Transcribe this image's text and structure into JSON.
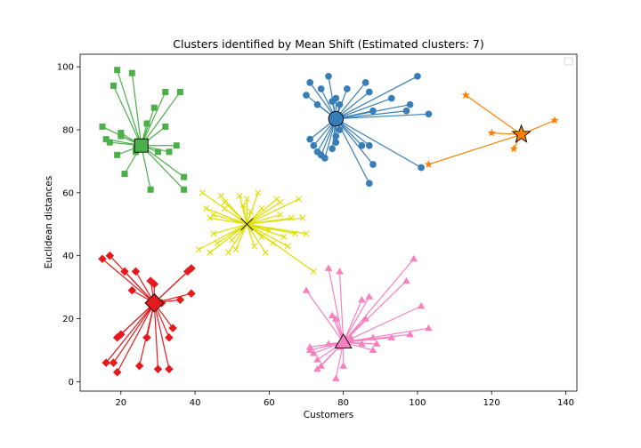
{
  "chart_data": {
    "type": "scatter",
    "title": "Clusters identified by Mean Shift (Estimated clusters: 7)",
    "xlabel": "Customers",
    "ylabel": "Euclidean distances",
    "xlim": [
      9,
      143
    ],
    "ylim": [
      -3,
      104
    ],
    "xticks": [
      20,
      40,
      60,
      80,
      100,
      120,
      140
    ],
    "yticks": [
      0,
      20,
      40,
      60,
      80,
      100
    ],
    "grid": false,
    "legend": "top-right, empty",
    "clusters": [
      {
        "color": "#377eb8",
        "marker": "circle",
        "center": [
          78,
          83.5
        ],
        "points": [
          [
            70,
            91
          ],
          [
            71,
            95
          ],
          [
            73,
            88
          ],
          [
            74,
            93
          ],
          [
            76,
            97
          ],
          [
            77,
            89
          ],
          [
            78,
            90
          ],
          [
            79,
            88
          ],
          [
            81,
            93
          ],
          [
            86,
            95
          ],
          [
            87,
            92
          ],
          [
            88,
            86
          ],
          [
            93,
            90
          ],
          [
            97,
            86
          ],
          [
            98,
            88
          ],
          [
            100,
            97
          ],
          [
            103,
            85
          ],
          [
            71,
            77
          ],
          [
            72,
            75
          ],
          [
            73,
            73
          ],
          [
            74,
            72
          ],
          [
            75,
            71
          ],
          [
            77,
            74
          ],
          [
            78,
            76
          ],
          [
            78,
            78
          ],
          [
            79,
            80
          ],
          [
            85,
            75
          ],
          [
            87,
            75
          ],
          [
            88,
            69
          ],
          [
            87,
            63
          ],
          [
            101,
            68
          ]
        ]
      },
      {
        "color": "#ff7f00",
        "marker": "star",
        "center": [
          128,
          78.5
        ],
        "points": [
          [
            113,
            91
          ],
          [
            120,
            79
          ],
          [
            126,
            74
          ],
          [
            137,
            83
          ],
          [
            103,
            69
          ]
        ]
      },
      {
        "color": "#4daf4a",
        "marker": "square",
        "center": [
          25.5,
          75
        ],
        "points": [
          [
            15,
            81
          ],
          [
            16,
            77
          ],
          [
            17,
            76
          ],
          [
            18,
            94
          ],
          [
            19,
            99
          ],
          [
            19,
            72
          ],
          [
            20,
            79
          ],
          [
            20,
            78
          ],
          [
            21,
            66
          ],
          [
            23,
            98
          ],
          [
            24,
            74
          ],
          [
            24,
            73
          ],
          [
            27,
            82
          ],
          [
            28,
            61
          ],
          [
            29,
            87
          ],
          [
            30,
            73
          ],
          [
            32,
            92
          ],
          [
            32,
            81
          ],
          [
            33,
            73
          ],
          [
            35,
            75
          ],
          [
            36,
            92
          ],
          [
            37,
            65
          ],
          [
            37,
            61
          ]
        ]
      },
      {
        "color": "#e41a1c",
        "marker": "diamond",
        "center": [
          29,
          25
        ],
        "points": [
          [
            15,
            39
          ],
          [
            16,
            6
          ],
          [
            17,
            40
          ],
          [
            18,
            6
          ],
          [
            19,
            3
          ],
          [
            19,
            14
          ],
          [
            20,
            15
          ],
          [
            21,
            35
          ],
          [
            23,
            29
          ],
          [
            24,
            35
          ],
          [
            25,
            5
          ],
          [
            27,
            14
          ],
          [
            28,
            32
          ],
          [
            29,
            31
          ],
          [
            30,
            4
          ],
          [
            31,
            25
          ],
          [
            33,
            4
          ],
          [
            33,
            14
          ],
          [
            34,
            17
          ],
          [
            36,
            26
          ],
          [
            38,
            35
          ],
          [
            39,
            36
          ],
          [
            39,
            28
          ]
        ]
      },
      {
        "color": "#dede00",
        "marker": "x",
        "center": [
          54,
          50
        ],
        "points": [
          [
            42,
            60
          ],
          [
            43,
            55
          ],
          [
            44,
            52
          ],
          [
            45,
            47
          ],
          [
            46,
            44
          ],
          [
            47,
            59
          ],
          [
            48,
            57
          ],
          [
            49,
            41
          ],
          [
            50,
            45
          ],
          [
            51,
            42
          ],
          [
            52,
            59
          ],
          [
            53,
            56
          ],
          [
            54,
            58
          ],
          [
            55,
            54
          ],
          [
            56,
            43
          ],
          [
            57,
            60
          ],
          [
            58,
            55
          ],
          [
            59,
            41
          ],
          [
            60,
            48
          ],
          [
            61,
            44
          ],
          [
            62,
            58
          ],
          [
            63,
            53
          ],
          [
            64,
            46
          ],
          [
            65,
            43
          ],
          [
            66,
            52
          ],
          [
            67,
            47
          ],
          [
            68,
            58
          ],
          [
            69,
            52
          ],
          [
            70,
            47
          ],
          [
            72,
            35
          ],
          [
            45,
            53
          ],
          [
            48,
            55
          ],
          [
            58,
            46
          ],
          [
            63,
            57
          ],
          [
            41,
            42
          ],
          [
            44,
            41
          ]
        ]
      },
      {
        "color": "#f781bf",
        "marker": "triangle",
        "center": [
          80,
          12.5
        ],
        "points": [
          [
            70,
            29
          ],
          [
            71,
            10
          ],
          [
            71,
            11
          ],
          [
            72,
            9
          ],
          [
            73,
            7
          ],
          [
            73,
            4
          ],
          [
            74,
            5
          ],
          [
            76,
            12
          ],
          [
            76,
            36
          ],
          [
            77,
            21
          ],
          [
            78,
            1
          ],
          [
            78,
            20
          ],
          [
            79,
            35
          ],
          [
            80,
            5
          ],
          [
            81,
            12
          ],
          [
            82,
            13
          ],
          [
            85,
            26
          ],
          [
            86,
            20
          ],
          [
            87,
            27
          ],
          [
            88,
            10
          ],
          [
            88,
            14
          ],
          [
            89,
            12
          ],
          [
            93,
            14
          ],
          [
            97,
            32
          ],
          [
            98,
            15
          ],
          [
            99,
            39
          ],
          [
            101,
            24
          ],
          [
            103,
            17
          ],
          [
            79,
            11
          ],
          [
            82,
            14
          ],
          [
            85,
            12
          ]
        ]
      },
      {
        "color": "#999999",
        "marker": "circle",
        "center": null,
        "points": []
      }
    ]
  }
}
